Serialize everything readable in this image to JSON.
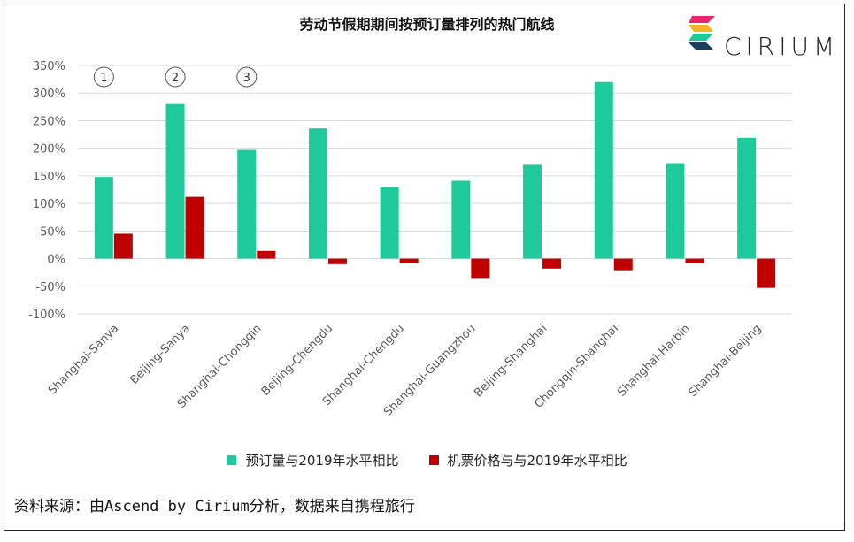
{
  "chart_data": {
    "type": "bar",
    "title": "劳动节假期期间按预订量排列的热门航线",
    "categories": [
      "Shanghai-Sanya",
      "Beijing-Sanya",
      "Shanghai-Chongqin",
      "Beijing-Chengdu",
      "Shanghai-Chengdu",
      "Shanghai-Guangzhou",
      "Beijing-Shanghai",
      "Chongqin-Shanghai",
      "Shanghai-Harbin",
      "Shanghai-Beijing"
    ],
    "series": [
      {
        "name": "预订量与2019年水平相比",
        "color": "#1ec99b",
        "values": [
          148,
          280,
          197,
          236,
          129,
          141,
          170,
          320,
          173,
          219
        ]
      },
      {
        "name": "机票价格与与2019年水平相比",
        "color": "#c00000",
        "values": [
          45,
          112,
          14,
          -10,
          -8,
          -35,
          -18,
          -21,
          -8,
          -53
        ]
      }
    ],
    "ylim": [
      -100,
      350
    ],
    "yticks": [
      -100,
      -50,
      0,
      50,
      100,
      150,
      200,
      250,
      300,
      350
    ],
    "ytick_labels": [
      "-100%",
      "-50%",
      "0%",
      "50%",
      "100%",
      "150%",
      "200%",
      "250%",
      "300%",
      "350%"
    ],
    "rank_markers": [
      "1",
      "2",
      "3"
    ],
    "grid": true,
    "legend_position": "bottom"
  },
  "brand": {
    "name": "CIRIUM",
    "logo_colors": [
      "#e8246a",
      "#f5b324",
      "#1ec99b",
      "#1c3f5e"
    ]
  },
  "source": "资料来源：由Ascend by Cirium分析，数据来自携程旅行"
}
